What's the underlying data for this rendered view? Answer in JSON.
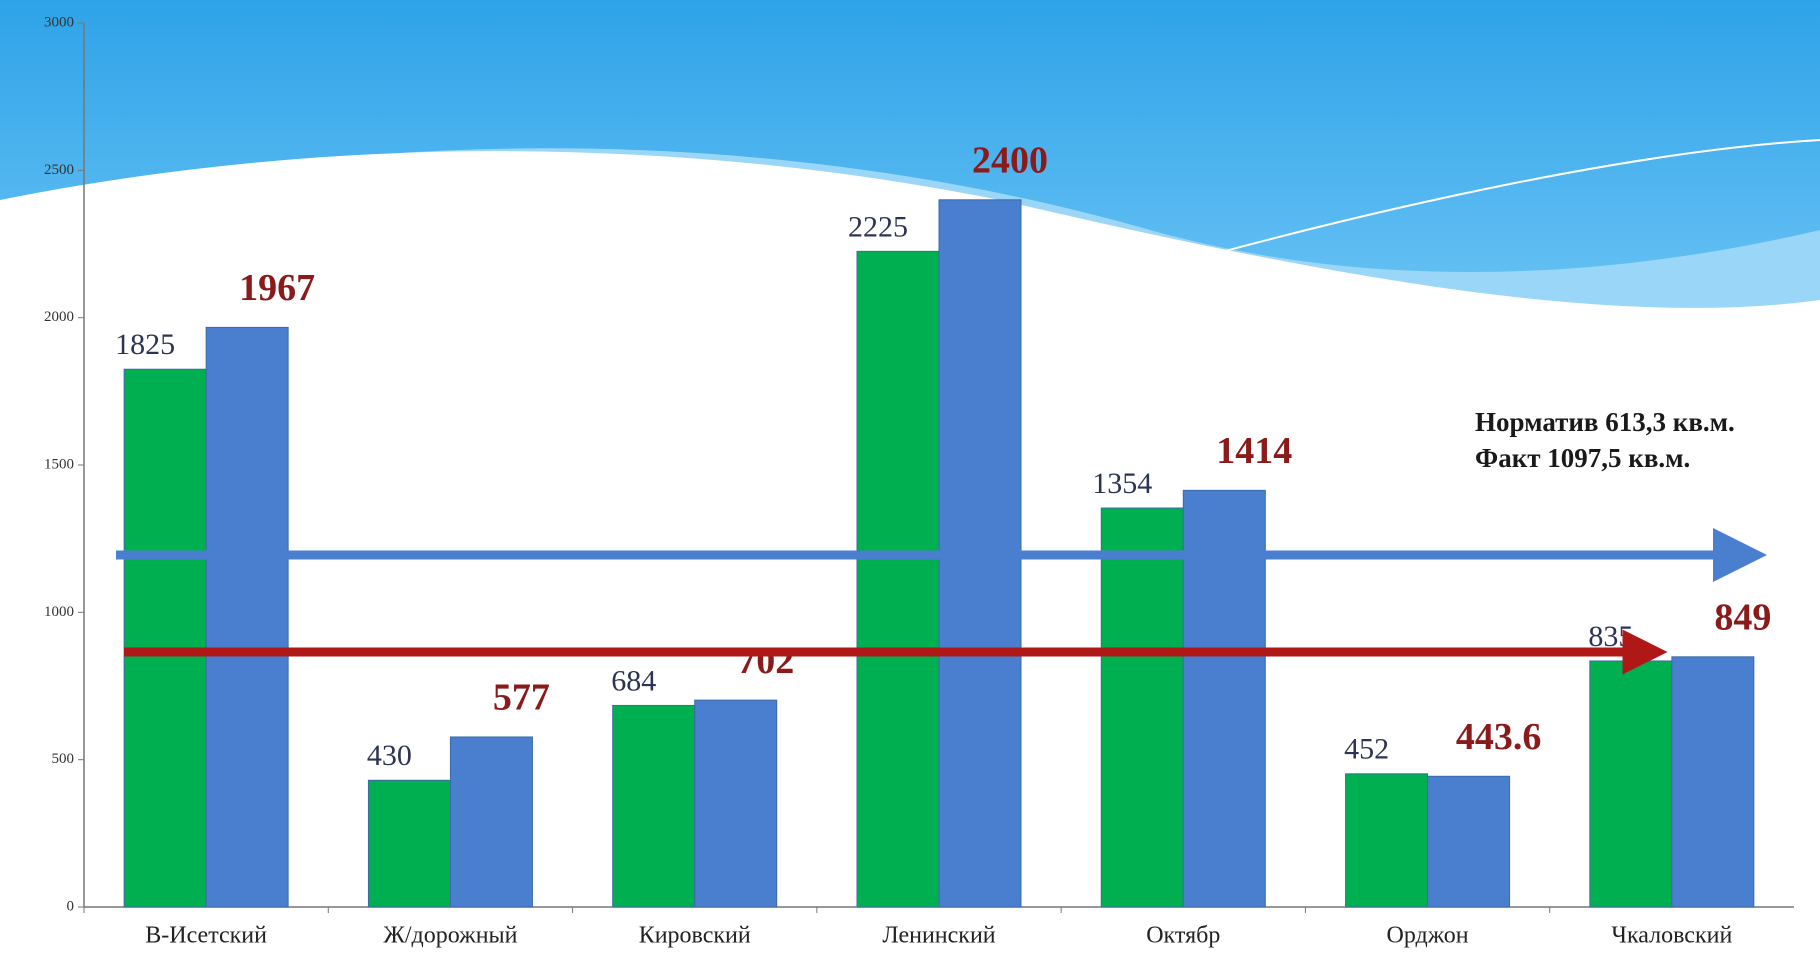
{
  "chart_data": {
    "type": "bar",
    "categories": [
      "В-Исетский",
      "Ж/дорожный",
      "Кировский",
      "Ленинский",
      "Октябр",
      "Орджон",
      "Чкаловский"
    ],
    "series": [
      {
        "color": "#00b050",
        "values": [
          1825,
          430,
          684,
          2225,
          1354,
          452,
          835
        ]
      },
      {
        "color": "#4a7fd0",
        "values": [
          1967,
          577,
          702,
          2400,
          1414,
          443.6,
          849
        ]
      }
    ],
    "ylim": [
      0,
      3000
    ],
    "yticks": [
      0,
      500,
      1000,
      1500,
      2000,
      2500,
      3000
    ],
    "annotations": [
      "Норматив 613,3 кв.м.",
      "Факт  1097,5 кв.м."
    ]
  }
}
